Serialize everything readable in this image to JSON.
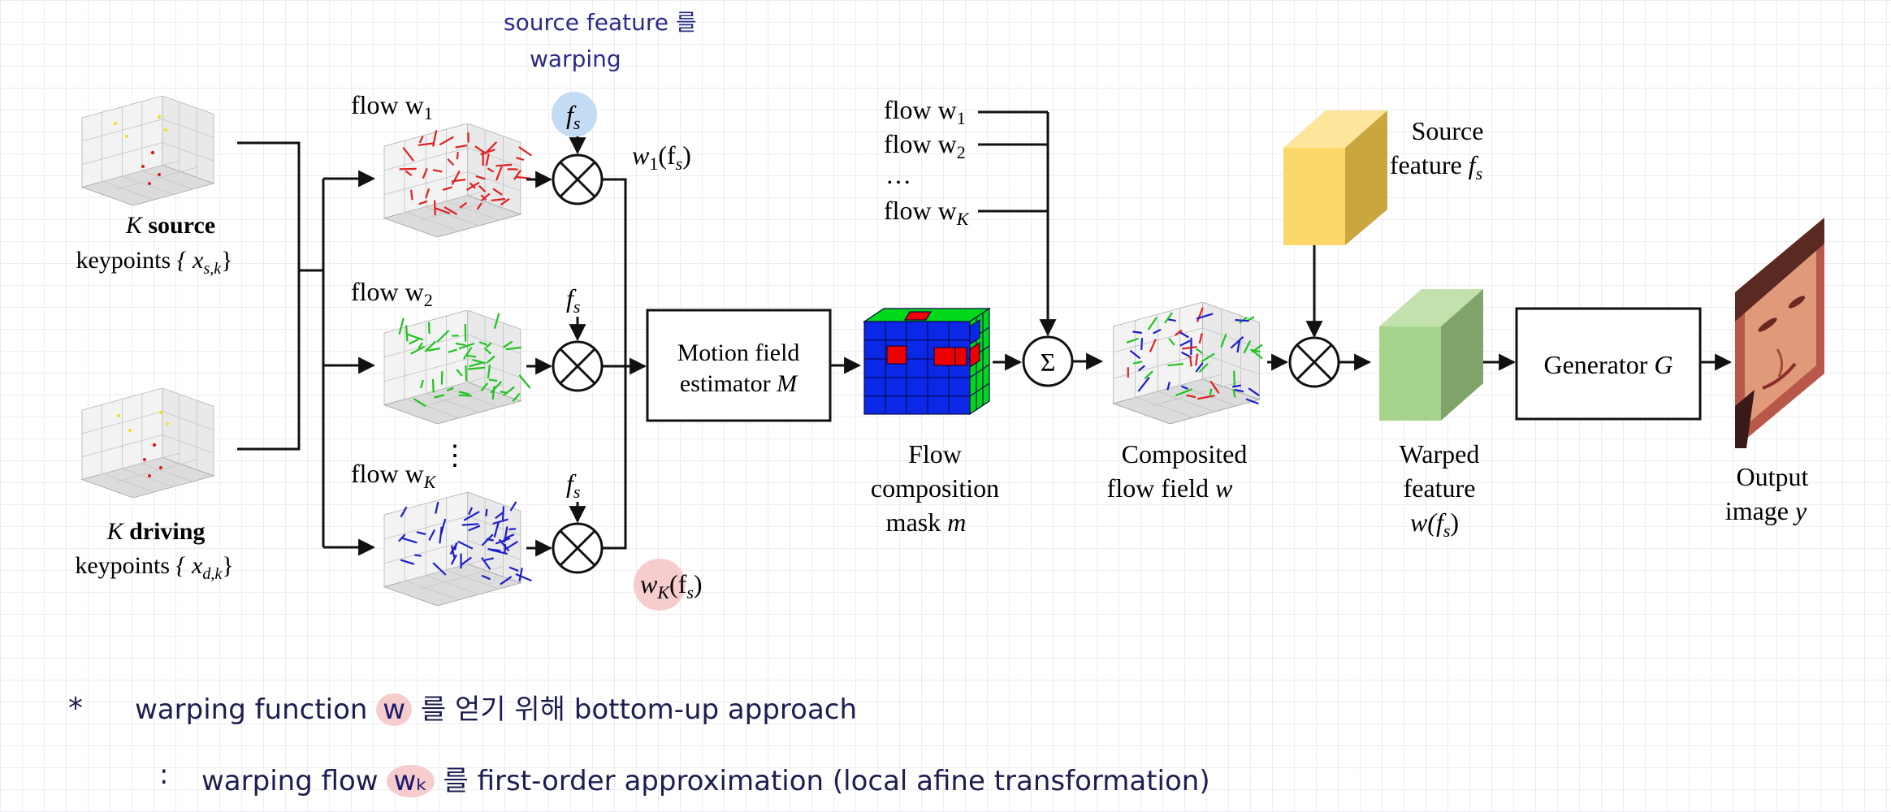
{
  "notes": {
    "top_line1": "source feature 를",
    "top_line2": "warping",
    "bottom_star": "*",
    "bottom_line1_a": "warping function",
    "bottom_line1_hl": "w",
    "bottom_line1_b": "를 얻기 위해 bottom-up approach",
    "bottom_line2_colon": ":",
    "bottom_line2_a": "warping flow",
    "bottom_line2_hl": "wₖ",
    "bottom_line2_b": "를 first-order approximation (local afine transformation)"
  },
  "keypoints": {
    "source_label_k": "K",
    "source_label_word": "source",
    "source_sub_word": "keypoints",
    "source_sub_set": "{ x",
    "source_sub_index": "s,k",
    "source_sub_close": "}",
    "driving_label_k": "K",
    "driving_label_word": "driving",
    "driving_sub_word": "keypoints",
    "driving_sub_set": "{ x",
    "driving_sub_index": "d,k",
    "driving_sub_close": "}"
  },
  "flows": {
    "flow1_label": "flow w",
    "flow1_sub": "1",
    "flow2_label": "flow w",
    "flow2_sub": "2",
    "flowK_label": "flow w",
    "flowK_sub": "K",
    "vdots": "⋮"
  },
  "fs": {
    "f": "f",
    "s": "s"
  },
  "warped_outputs": {
    "w1_label": "w",
    "w1_sub": "1",
    "w1_arg": "(f",
    "w1_arg_sub": "s",
    "w1_close": ")",
    "wK_label": "w",
    "wK_sub": "K",
    "wK_arg": "(f",
    "wK_arg_sub": "s",
    "wK_close": ")"
  },
  "motion_estimator": {
    "line1": "Motion field",
    "line2": "estimator",
    "var": "M"
  },
  "flow_composition": {
    "line1": "Flow",
    "line2": "composition",
    "line3": "mask",
    "var": "m"
  },
  "sum_inputs": {
    "in1_label": "flow w",
    "in1_sub": "1",
    "in2_label": "flow w",
    "in2_sub": "2",
    "dots": "…",
    "inK_label": "flow w",
    "inK_sub": "K"
  },
  "sigma": "Σ",
  "composited": {
    "line1": "Composited",
    "line2": "flow field",
    "var": "w"
  },
  "source_feature": {
    "line1": "Source",
    "line2": "feature",
    "var": "f",
    "sub": "s"
  },
  "warped_feature": {
    "line1": "Warped",
    "line2": "feature",
    "expr": "w(f",
    "sub": "s",
    "close": ")"
  },
  "generator": {
    "label": "Generator",
    "var": "G"
  },
  "output": {
    "line1": "Output",
    "line2": "image",
    "var": "y"
  },
  "colors": {
    "flow1": "#e02020",
    "flow2": "#1fc41f",
    "flowK": "#1c1ccc",
    "cube_blue": "#0a28e6",
    "cube_red": "#ee0000",
    "cube_green": "#00d81c",
    "yellow_front": "#fcd76a",
    "yellow_side": "#c9a63e",
    "green_front": "#a6d38c",
    "green_side": "#7fa56a",
    "ink": "#111111",
    "blue_hl": "#c3dcf4",
    "pink_hl": "#f6cccc"
  }
}
